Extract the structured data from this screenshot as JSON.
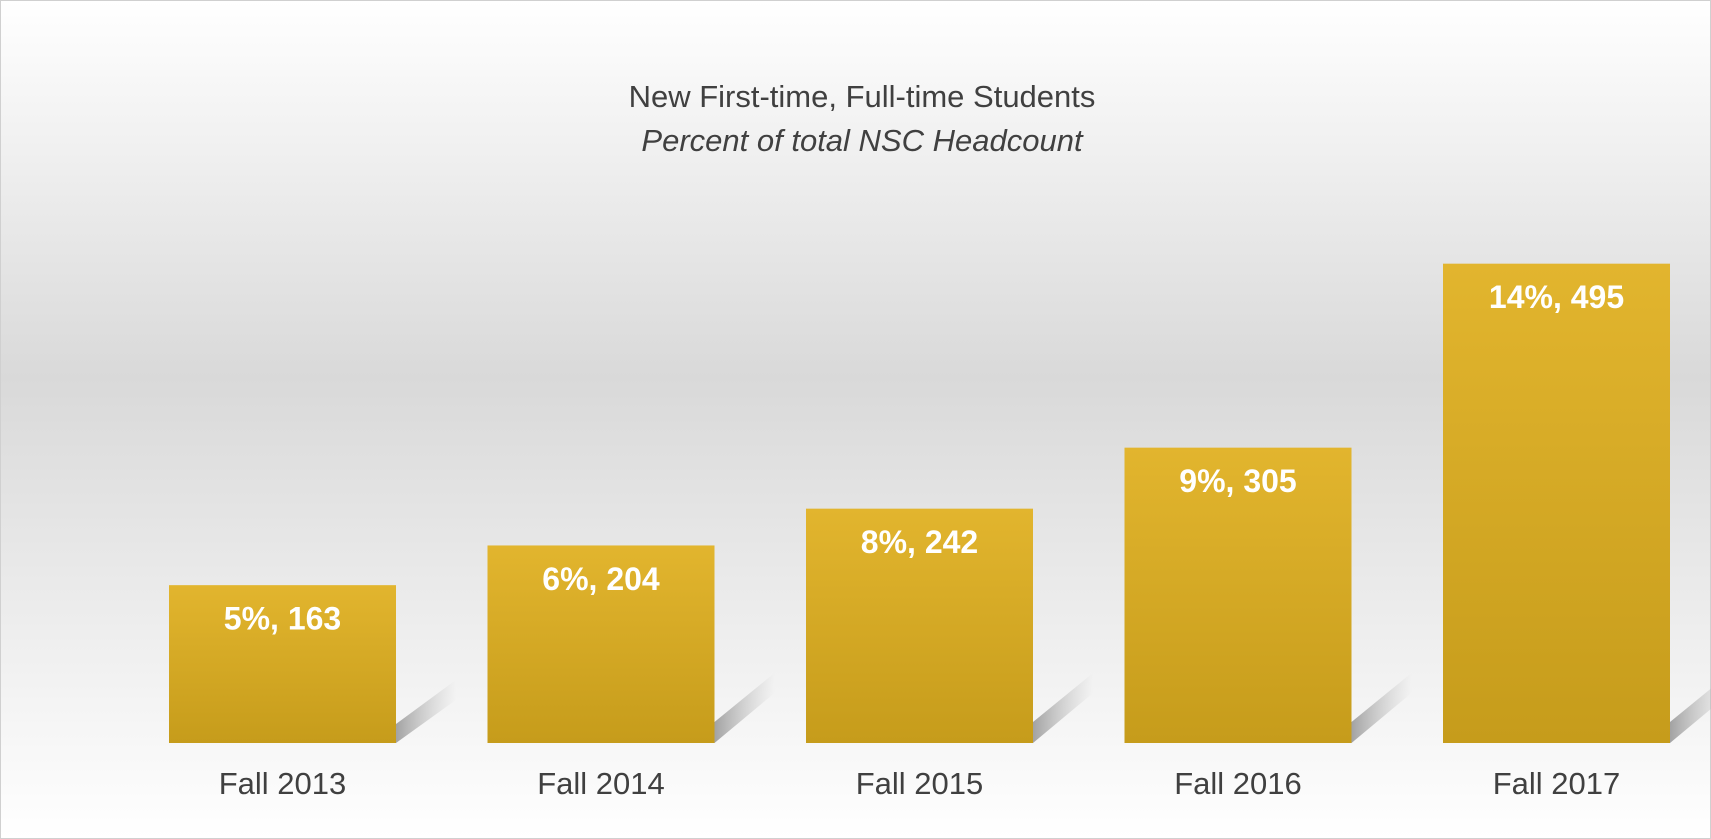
{
  "chart_data": {
    "type": "bar",
    "title": "New First-time, Full-time Students",
    "subtitle": "Percent of total NSC Headcount",
    "categories": [
      "Fall 2013",
      "Fall 2014",
      "Fall 2015",
      "Fall 2016",
      "Fall 2017"
    ],
    "values": [
      163,
      204,
      242,
      305,
      495
    ],
    "value_labels": [
      "5%, 163",
      "6%, 204",
      "8%, 242",
      "9%, 305",
      "14%, 495"
    ],
    "color": "#d4a82a",
    "ylim": [
      0,
      600
    ]
  }
}
